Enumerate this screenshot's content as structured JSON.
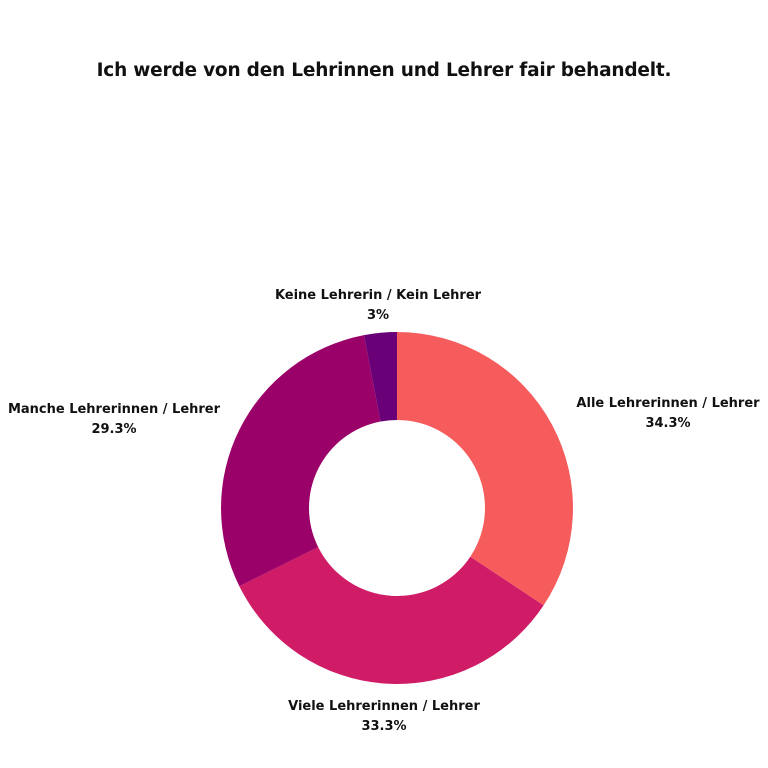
{
  "chart_data": {
    "type": "pie",
    "title": "Ich werde von den Lehrinnen und Lehrer fair behandelt.",
    "variant": "donut",
    "slices": [
      {
        "label": "Alle Lehrerinnen / Lehrer",
        "value": 34.3,
        "value_label": "34.3%",
        "color": "#f65c5c"
      },
      {
        "label": "Viele Lehrerinnen / Lehrer",
        "value": 33.3,
        "value_label": "33.3%",
        "color": "#d01b67"
      },
      {
        "label": "Manche Lehrerinnen / Lehrer",
        "value": 29.3,
        "value_label": "29.3%",
        "color": "#9b0269"
      },
      {
        "label": "Keine Lehrerin / Kein Lehrer",
        "value": 3,
        "value_label": "3%",
        "color": "#690077"
      }
    ],
    "legend": "none"
  }
}
